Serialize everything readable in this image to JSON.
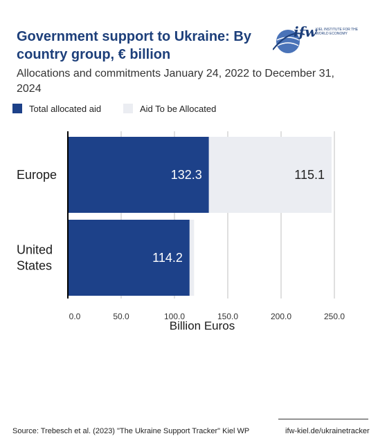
{
  "title": "Government support to Ukraine: By country group, € billion",
  "subtitle": "Allocations and commitments January 24, 2022 to December 31, 2024",
  "logo": {
    "text": "ifw",
    "subtext": "KIEL INSTITUTE FOR THE WORLD ECONOMY",
    "icon": "globe-icon"
  },
  "legend": [
    {
      "label": "Total allocated aid",
      "color": "#1d4189"
    },
    {
      "label": "Aid To be Allocated",
      "color": "#ebedf2"
    }
  ],
  "chart_data": {
    "type": "bar",
    "orientation": "horizontal",
    "stacked": true,
    "categories": [
      "Europe",
      "United States"
    ],
    "series": [
      {
        "name": "Total allocated aid",
        "values": [
          132.3,
          114.2
        ],
        "labels": [
          "132.3",
          "114.2"
        ],
        "color": "#1d4189"
      },
      {
        "name": "Aid To be Allocated",
        "values": [
          115.1,
          4.2
        ],
        "labels": [
          "115.1",
          ""
        ],
        "color": "#ebedf2"
      }
    ],
    "xlabel": "Billion Euros",
    "xlim": [
      0,
      250
    ],
    "xticks": [
      0,
      50,
      100,
      150,
      200,
      250
    ],
    "xtick_labels": [
      "0.0",
      "50.0",
      "100.0",
      "150.0",
      "200.0",
      "250.0"
    ],
    "grid": true
  },
  "footer": {
    "source": "Source: Trebesch et al. (2023) \"The Ukraine Support Tracker\" Kiel WP",
    "site": "ifw-kiel.de/ukrainetracker"
  }
}
